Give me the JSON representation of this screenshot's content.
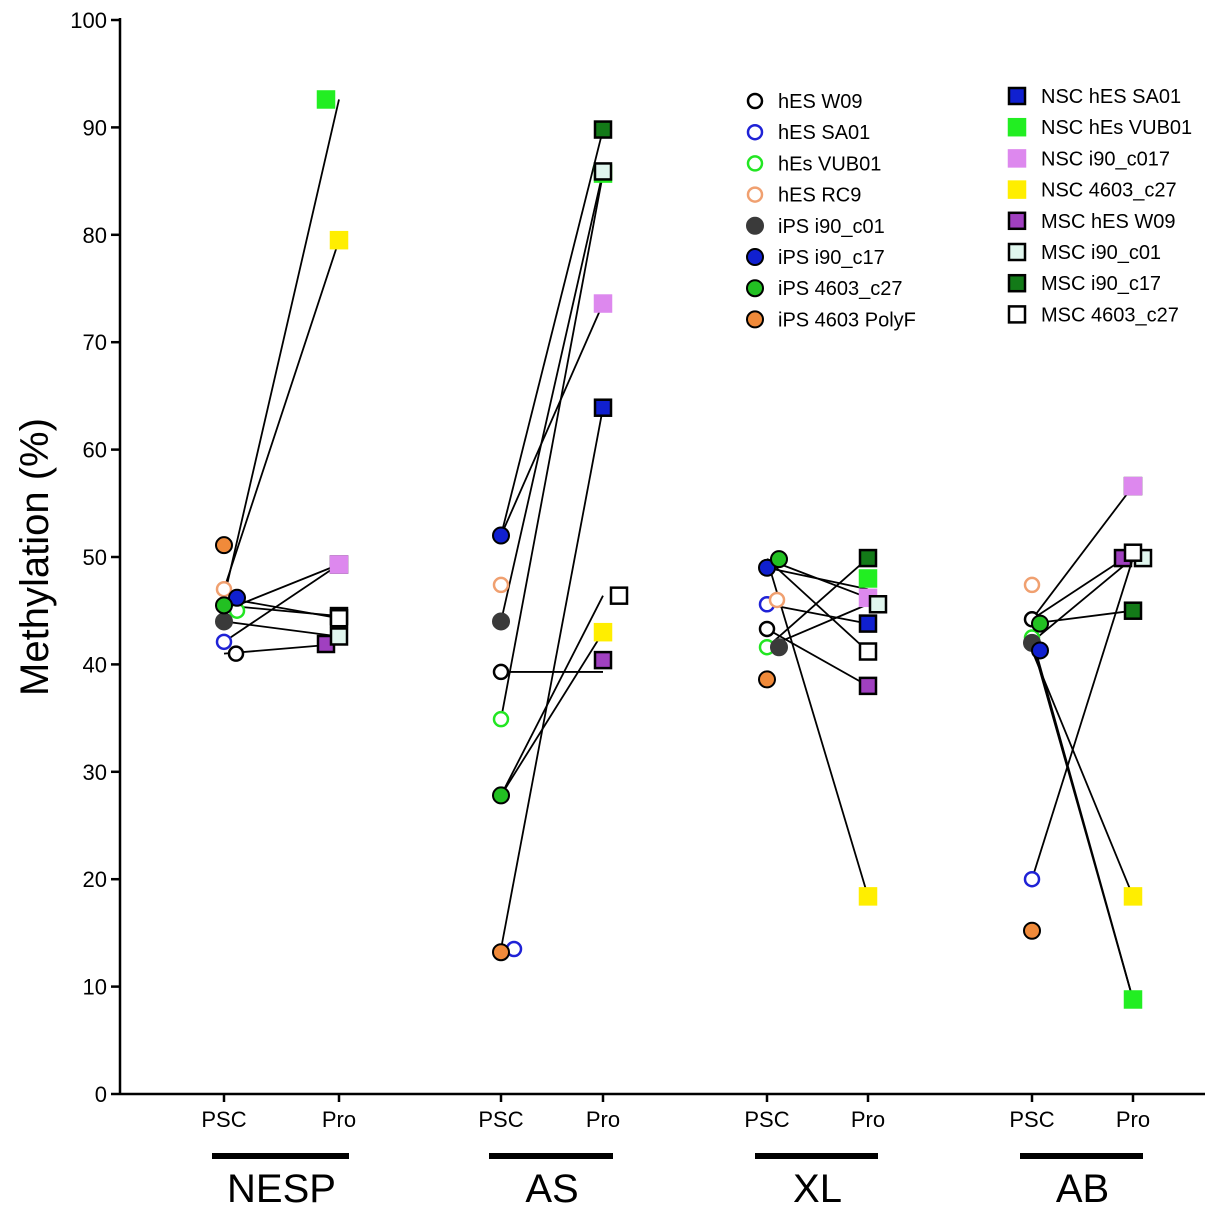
{
  "chart_data": {
    "type": "scatter",
    "ylabel": "Methylation (%)",
    "ylim": [
      0,
      100
    ],
    "yticks": [
      0,
      10,
      20,
      30,
      40,
      50,
      60,
      70,
      80,
      90,
      100
    ],
    "groups": [
      "NESP",
      "AS",
      "XL",
      "AB"
    ],
    "x_categories": [
      "PSC",
      "Pro"
    ],
    "legend_placement": "top-right",
    "psc_series": [
      {
        "name": "hES W09",
        "shape": "circle",
        "fill": "#ffffff",
        "stroke": "#000000",
        "values": {
          "NESP": 41.0,
          "AS": 39.3,
          "XL": 43.3,
          "AB": 44.2
        }
      },
      {
        "name": "hES SA01",
        "shape": "circle",
        "fill": "#ffffff",
        "stroke": "#1f22d6",
        "values": {
          "NESP": 42.1,
          "AS": 13.5,
          "XL": 45.6,
          "AB": 20.0
        }
      },
      {
        "name": "hEs VUB01",
        "shape": "circle",
        "fill": "#ffffff",
        "stroke": "#22e622",
        "values": {
          "NESP": 45.0,
          "AS": 34.9,
          "XL": 41.6,
          "AB": 42.5
        }
      },
      {
        "name": "hES RC9",
        "shape": "circle",
        "fill": "#ffffff",
        "stroke": "#f0a070",
        "values": {
          "NESP": 47.0,
          "AS": 47.4,
          "XL": 46.0,
          "AB": 47.4
        }
      },
      {
        "name": "iPS i90_c01",
        "shape": "circle",
        "fill": "#3a3a3a",
        "stroke": "#3a3a3a",
        "values": {
          "NESP": 44.0,
          "AS": 44.0,
          "XL": 41.6,
          "AB": 42.0
        }
      },
      {
        "name": "iPS i90_c17",
        "shape": "circle",
        "fill": "#1020d0",
        "stroke": "#000000",
        "values": {
          "NESP": 46.2,
          "AS": 52.0,
          "XL": 49.0,
          "AB": 41.3
        }
      },
      {
        "name": "iPS 4603_c27",
        "shape": "circle",
        "fill": "#22c022",
        "stroke": "#000000",
        "values": {
          "NESP": 45.5,
          "AS": 27.8,
          "XL": 49.8,
          "AB": 43.8
        }
      },
      {
        "name": "iPS 4603 PolyF",
        "shape": "circle",
        "fill": "#f08a3a",
        "stroke": "#000000",
        "values": {
          "NESP": 51.1,
          "AS": 13.2,
          "XL": 38.6,
          "AB": 15.2
        }
      }
    ],
    "pro_series": [
      {
        "name": "NSC hES SA01",
        "shape": "square",
        "fill": "#1020d0",
        "stroke": "#000000",
        "values": {
          "NESP": 49.3,
          "AS": 63.9,
          "XL": 43.8,
          "AB": 56.6
        }
      },
      {
        "name": "NSC hEs VUB01",
        "shape": "square",
        "fill": "#22ee22",
        "stroke": "#22ee22",
        "values": {
          "NESP": 92.6,
          "AS": 85.7,
          "XL": 48.0,
          "AB": 8.8
        }
      },
      {
        "name": "NSC i90_c017",
        "shape": "square",
        "fill": "#dd88ee",
        "stroke": "#dd88ee",
        "values": {
          "NESP": 49.3,
          "AS": 73.6,
          "XL": 46.2,
          "AB": 56.6
        }
      },
      {
        "name": "NSC 4603_c27",
        "shape": "square",
        "fill": "#ffee00",
        "stroke": "#ffee00",
        "values": {
          "NESP": 79.5,
          "AS": 43.0,
          "XL": 18.4,
          "AB": 18.4
        }
      },
      {
        "name": "MSC hES W09",
        "shape": "square",
        "fill": "#a040c0",
        "stroke": "#000000",
        "values": {
          "NESP": 41.9,
          "AS": 40.4,
          "XL": 38.0,
          "AB": 49.9
        }
      },
      {
        "name": "MSC i90_c01",
        "shape": "square",
        "fill": "#e0f6ee",
        "stroke": "#000000",
        "values": {
          "NESP": 42.6,
          "AS": 85.9,
          "XL": 45.6,
          "AB": 49.9
        }
      },
      {
        "name": "MSC i90_c17",
        "shape": "square",
        "fill": "#137a18",
        "stroke": "#000000",
        "values": {
          "NESP": 44.5,
          "AS": 89.8,
          "XL": 49.9,
          "AB": 45.0
        }
      },
      {
        "name": "MSC 4603_c27",
        "shape": "square",
        "fill": "#ffffff",
        "stroke": "#000000",
        "values": {
          "NESP": 44.3,
          "AS": 46.4,
          "XL": 41.2,
          "AB": 50.4
        }
      }
    ],
    "connections": {
      "NESP": [
        [
          41.0,
          41.9
        ],
        [
          42.1,
          49.3
        ],
        [
          45.0,
          49.3
        ],
        [
          44.0,
          42.6
        ],
        [
          46.2,
          44.3
        ],
        [
          45.5,
          44.5
        ],
        [
          46.2,
          92.6
        ],
        [
          47.0,
          79.5
        ]
      ],
      "AS": [
        [
          39.3,
          39.3
        ],
        [
          13.5,
          63.9
        ],
        [
          34.9,
          85.7
        ],
        [
          44.0,
          85.9
        ],
        [
          52.0,
          89.8
        ],
        [
          52.0,
          73.6
        ],
        [
          27.8,
          43.0
        ],
        [
          27.8,
          46.4
        ]
      ],
      "XL": [
        [
          43.3,
          38.0
        ],
        [
          45.6,
          43.8
        ],
        [
          41.6,
          49.9
        ],
        [
          49.8,
          41.2
        ],
        [
          49.8,
          46.2
        ],
        [
          49.8,
          18.4
        ],
        [
          49.0,
          47.0
        ],
        [
          41.6,
          45.6
        ]
      ],
      "AB": [
        [
          44.2,
          56.6
        ],
        [
          42.1,
          49.9
        ],
        [
          20.0,
          49.9
        ],
        [
          43.8,
          45.0
        ],
        [
          44.2,
          50.4
        ],
        [
          41.3,
          18.4
        ],
        [
          42.0,
          8.8
        ],
        [
          42.5,
          8.8
        ]
      ]
    }
  }
}
